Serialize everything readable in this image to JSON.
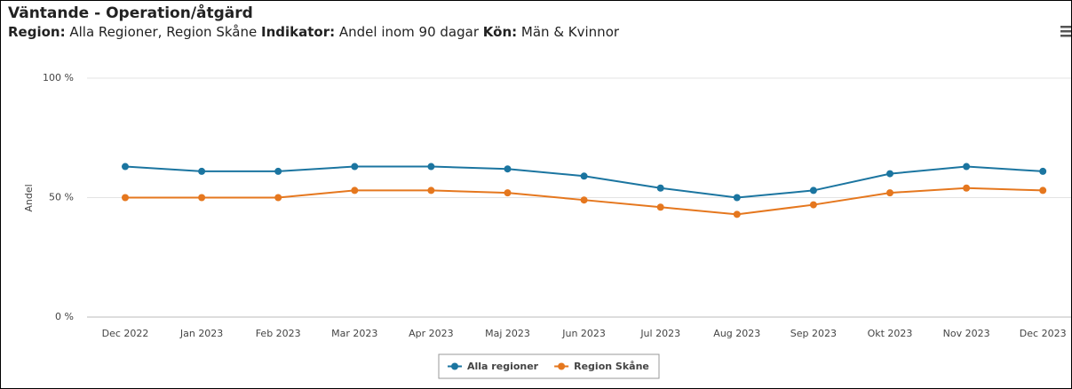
{
  "chart_data": {
    "type": "line",
    "title": "Väntande - Operation/åtgärd",
    "filters": [
      {
        "label": "Region:",
        "text": "Alla Regioner, Region Skåne"
      },
      {
        "label": "Indikator:",
        "text": "Andel inom 90 dagar"
      },
      {
        "label": "Kön:",
        "text": "Män & Kvinnor"
      }
    ],
    "y_label": "Andel",
    "categories": [
      "Dec 2022",
      "Jan 2023",
      "Feb 2023",
      "Mar 2023",
      "Apr 2023",
      "Maj 2023",
      "Jun 2023",
      "Jul 2023",
      "Aug 2023",
      "Sep 2023",
      "Okt 2023",
      "Nov 2023",
      "Dec 2023"
    ],
    "series": [
      {
        "name": "Alla regioner",
        "color": "#1b75a0",
        "values": [
          63,
          61,
          61,
          63,
          63,
          62,
          59,
          54,
          50,
          53,
          60,
          63,
          61
        ]
      },
      {
        "name": "Region Skåne",
        "color": "#e5771e",
        "values": [
          50,
          50,
          50,
          53,
          53,
          52,
          49,
          46,
          43,
          47,
          52,
          54,
          53
        ]
      }
    ],
    "ylim": [
      0,
      100
    ],
    "yticks": [
      {
        "value": 0,
        "label": "0 %"
      },
      {
        "value": 50,
        "label": "50 %"
      },
      {
        "value": 100,
        "label": "100 %"
      }
    ],
    "grid": true,
    "legend": "bottom"
  }
}
